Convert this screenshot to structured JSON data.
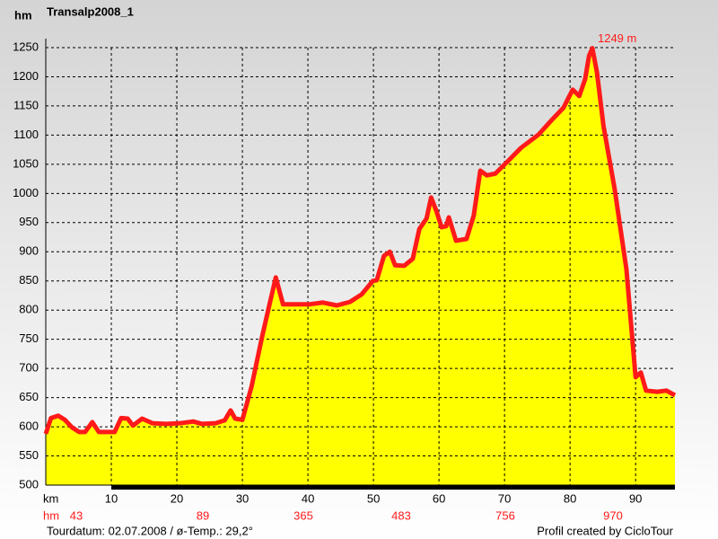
{
  "chart_data": {
    "type": "area",
    "title": "Transalp2008_1",
    "y_label": "hm",
    "x_label": "km",
    "annotation": "1249 m",
    "climb_label": "hm",
    "climb_values": [
      43,
      89,
      365,
      483,
      756,
      970
    ],
    "footer_left": "Tourdatum: 02.07.2008  /  ø-Temp.: 29,2°",
    "footer_right": "Profil created by CicloTour",
    "line_color": "#ff1a1a",
    "fill_color": "#ffff00",
    "grid": true,
    "xlim": [
      0,
      96
    ],
    "ylim": [
      500,
      1250
    ],
    "xticks": [
      10,
      20,
      30,
      40,
      50,
      60,
      70,
      80,
      90
    ],
    "yticks": [
      500,
      550,
      600,
      650,
      700,
      750,
      800,
      850,
      900,
      950,
      1000,
      1050,
      1100,
      1150,
      1200,
      1250
    ],
    "x": [
      0,
      0.8,
      1.9,
      2.9,
      4.0,
      5.1,
      6.0,
      7.1,
      8.1,
      9.2,
      10.5,
      11.5,
      12.5,
      13.3,
      14.7,
      16.3,
      18.4,
      20.4,
      22.5,
      23.8,
      25.9,
      27.3,
      28.2,
      28.9,
      30.0,
      31.4,
      33.0,
      34.1,
      35.1,
      36.2,
      37.9,
      40.3,
      42.3,
      44.4,
      46.4,
      48.2,
      49.9,
      50.5,
      51.6,
      52.5,
      53.3,
      54.7,
      56.0,
      57.0,
      58.1,
      58.8,
      59.6,
      60.4,
      61.1,
      61.5,
      62.6,
      64.2,
      65.3,
      66.3,
      67.3,
      68.6,
      70.4,
      72.5,
      75.2,
      77.3,
      79.0,
      80.4,
      81.4,
      82.3,
      82.9,
      83.4,
      84.1,
      85.1,
      86.8,
      88.6,
      90.0,
      90.8,
      91.6,
      93.3,
      94.7,
      96.0
    ],
    "values": [
      588,
      615,
      619,
      612,
      599,
      591,
      591,
      608,
      591,
      591,
      591,
      615,
      614,
      602,
      614,
      606,
      605,
      606,
      609,
      605,
      606,
      611,
      628,
      614,
      612,
      669,
      754,
      808,
      856,
      810,
      810,
      810,
      813,
      808,
      814,
      827,
      850,
      851,
      893,
      900,
      877,
      876,
      888,
      939,
      957,
      993,
      970,
      942,
      944,
      959,
      919,
      922,
      962,
      1039,
      1031,
      1034,
      1054,
      1078,
      1101,
      1127,
      1147,
      1178,
      1167,
      1196,
      1236,
      1249,
      1208,
      1116,
      1008,
      870,
      685,
      693,
      662,
      660,
      662,
      654
    ]
  }
}
